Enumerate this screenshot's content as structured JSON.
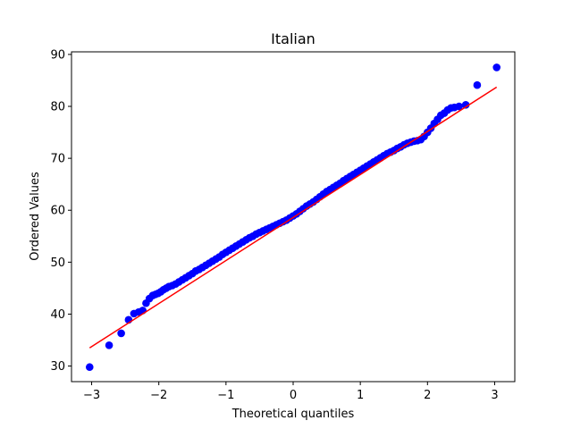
{
  "chart_data": {
    "type": "scatter",
    "title": "Italian",
    "xlabel": "Theoretical quantiles",
    "ylabel": "Ordered Values",
    "xlim": [
      -3.3,
      3.3
    ],
    "ylim": [
      27,
      90.5
    ],
    "x_ticks": [
      -3,
      -2,
      -1,
      0,
      1,
      2,
      3
    ],
    "y_ticks": [
      30,
      40,
      50,
      60,
      70,
      80,
      90
    ],
    "grid": false,
    "legend": "none",
    "fit_line": {
      "x": [
        -3.03,
        3.03
      ],
      "y": [
        33.5,
        83.7
      ],
      "color": "#ff0000"
    },
    "point_color": "#0000ff",
    "points": {
      "x": [
        -3.03,
        -2.74,
        -2.56,
        -2.45,
        -2.37,
        -2.3,
        -2.24,
        -2.19,
        -2.14,
        -2.09,
        -2.05,
        -2.01,
        -1.97,
        -1.93,
        -1.89,
        -1.85,
        -1.8,
        -1.75,
        -1.7,
        -1.65,
        -1.6,
        -1.55,
        -1.5,
        -1.45,
        -1.4,
        -1.35,
        -1.3,
        -1.25,
        -1.2,
        -1.15,
        -1.1,
        -1.05,
        -1.0,
        -0.95,
        -0.9,
        -0.85,
        -0.8,
        -0.75,
        -0.7,
        -0.65,
        -0.6,
        -0.55,
        -0.5,
        -0.45,
        -0.4,
        -0.35,
        -0.3,
        -0.25,
        -0.2,
        -0.15,
        -0.1,
        -0.05,
        0.0,
        0.05,
        0.1,
        0.15,
        0.2,
        0.25,
        0.3,
        0.35,
        0.4,
        0.45,
        0.5,
        0.55,
        0.6,
        0.65,
        0.7,
        0.75,
        0.8,
        0.85,
        0.9,
        0.95,
        1.0,
        1.05,
        1.1,
        1.15,
        1.2,
        1.25,
        1.3,
        1.35,
        1.4,
        1.45,
        1.5,
        1.55,
        1.6,
        1.65,
        1.7,
        1.75,
        1.8,
        1.85,
        1.9,
        1.95,
        2.0,
        2.05,
        2.1,
        2.15,
        2.2,
        2.25,
        2.3,
        2.35,
        2.4,
        2.47,
        2.57,
        2.74,
        3.03
      ],
      "y": [
        29.8,
        34.0,
        36.3,
        38.9,
        40.1,
        40.4,
        40.7,
        42.1,
        43.0,
        43.6,
        43.8,
        44.0,
        44.3,
        44.7,
        45.0,
        45.3,
        45.5,
        45.8,
        46.2,
        46.6,
        47.0,
        47.4,
        47.8,
        48.3,
        48.6,
        49.0,
        49.4,
        49.8,
        50.2,
        50.6,
        51.0,
        51.5,
        51.9,
        52.3,
        52.7,
        53.1,
        53.5,
        53.9,
        54.3,
        54.7,
        55.0,
        55.4,
        55.7,
        56.0,
        56.3,
        56.6,
        56.9,
        57.2,
        57.5,
        57.8,
        58.1,
        58.5,
        58.9,
        59.3,
        59.8,
        60.3,
        60.8,
        61.2,
        61.6,
        62.1,
        62.6,
        63.1,
        63.6,
        64.0,
        64.4,
        64.8,
        65.2,
        65.7,
        66.1,
        66.5,
        66.9,
        67.3,
        67.7,
        68.1,
        68.5,
        68.9,
        69.3,
        69.7,
        70.1,
        70.5,
        70.9,
        71.2,
        71.5,
        71.9,
        72.2,
        72.6,
        72.9,
        73.1,
        73.3,
        73.4,
        73.6,
        74.2,
        75.0,
        75.8,
        76.7,
        77.5,
        78.3,
        78.7,
        79.3,
        79.7,
        79.8,
        80.0,
        80.3,
        84.1,
        87.5
      ]
    }
  }
}
